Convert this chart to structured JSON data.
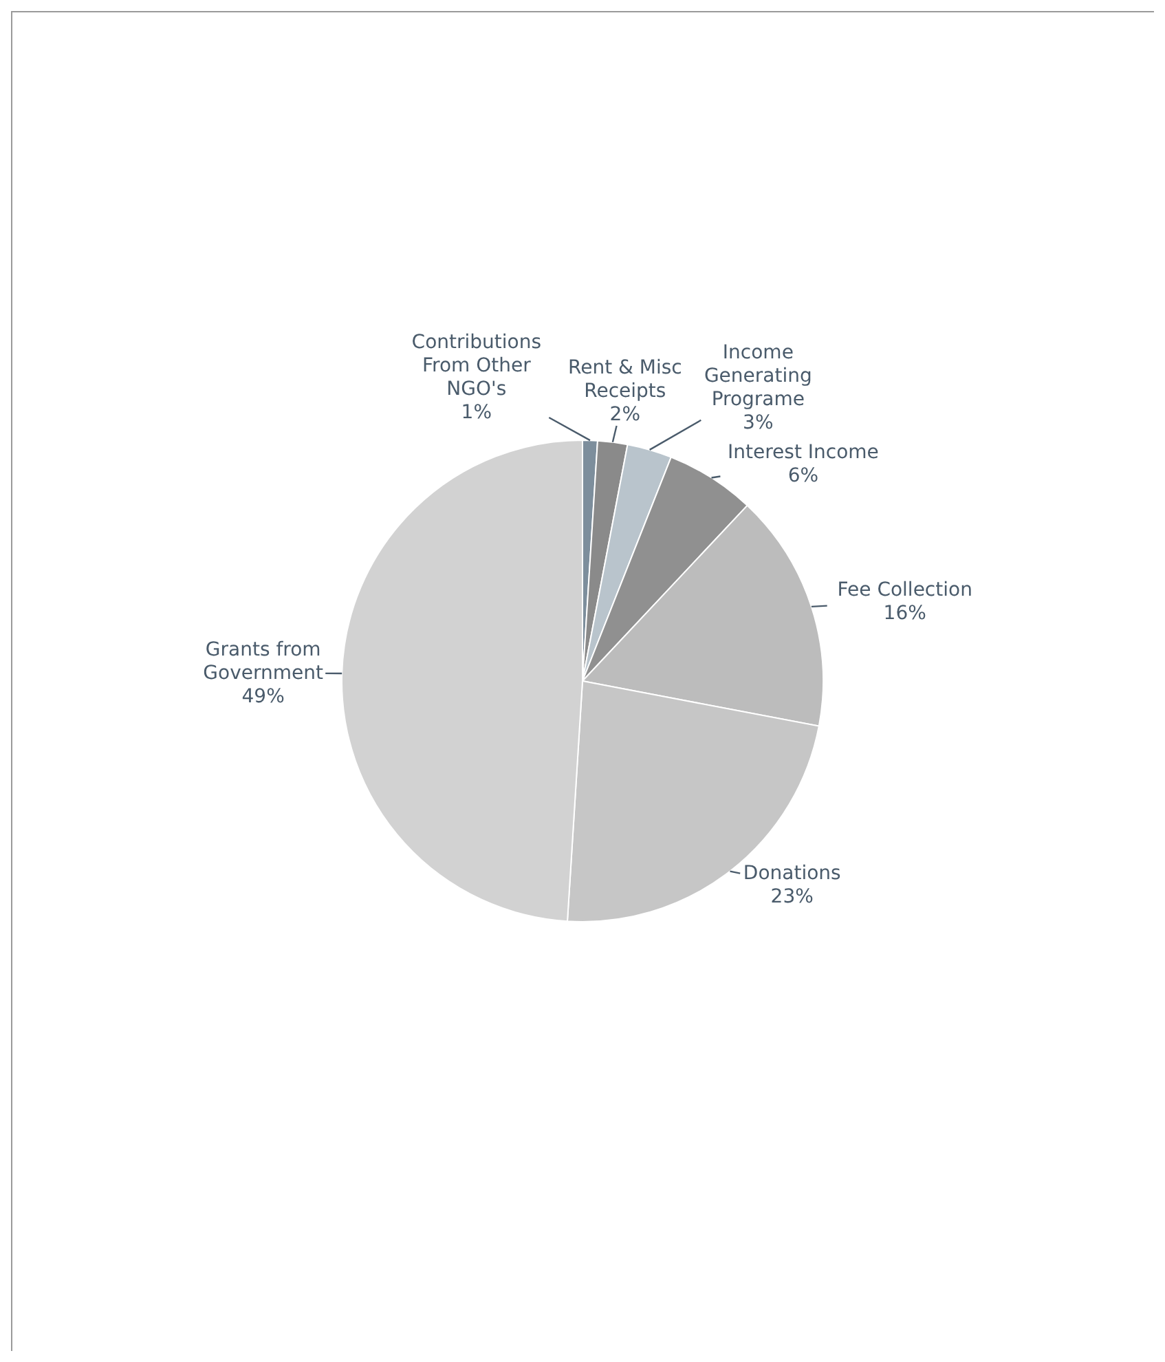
{
  "chart_data": {
    "type": "pie",
    "categories": [
      "Contributions From Other NGO's",
      "Rent & Misc Receipts",
      "Income Generating Programe",
      "Interest Income",
      "Fee Collection",
      "Donations",
      "Grants from Government"
    ],
    "values": [
      1,
      2,
      3,
      6,
      16,
      23,
      49
    ],
    "value_labels": [
      "1%",
      "2%",
      "3%",
      "6%",
      "16%",
      "23%",
      "49%"
    ],
    "colors": [
      "#7d8e9c",
      "#8a8a8a",
      "#b9c4cc",
      "#909090",
      "#bcbcbc",
      "#c6c6c6",
      "#d2d2d2"
    ]
  }
}
